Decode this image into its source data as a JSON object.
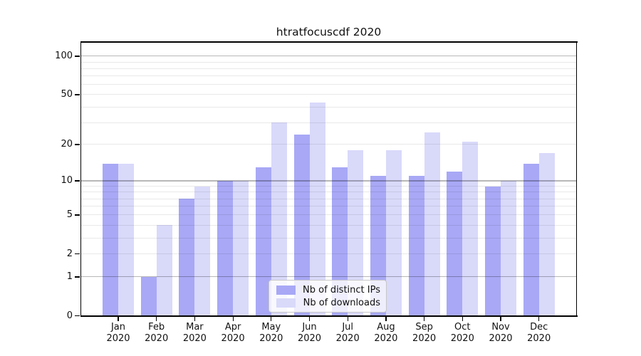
{
  "title": "htratfocuscdf 2020",
  "colors": {
    "ips_bar": "#a8a8f6",
    "downloads_bar": "#d9d9fa",
    "grid_major": "rgba(0,0,0,0.28)",
    "grid_minor": "rgba(0,0,0,0.085)",
    "axis": "#000000",
    "legend_border": "#c8c8c8"
  },
  "chart_data": {
    "type": "bar",
    "title": "htratfocuscdf 2020",
    "categories": [
      "Jan",
      "Feb",
      "Mar",
      "Apr",
      "May",
      "Jun",
      "Jul",
      "Aug",
      "Sep",
      "Oct",
      "Nov",
      "Dec"
    ],
    "year_label": "2020",
    "series": [
      {
        "name": "Nb of distinct IPs",
        "values": [
          14,
          1,
          7,
          10,
          13,
          24,
          13,
          11,
          11,
          12,
          9,
          14
        ]
      },
      {
        "name": "Nb of downloads",
        "values": [
          14,
          4,
          9,
          10,
          30,
          43,
          18,
          18,
          25,
          21,
          10,
          17
        ]
      }
    ],
    "xlabel": "",
    "ylabel": "",
    "yscale": "log10(1+x)",
    "ylim": [
      0,
      130
    ],
    "yticks": [
      0,
      1,
      2,
      5,
      10,
      20,
      50,
      100
    ],
    "major_gridlines": [
      1,
      10,
      100
    ],
    "minor_gridlines": [
      2,
      3,
      4,
      5,
      6,
      7,
      8,
      9,
      20,
      30,
      40,
      50,
      60,
      70,
      80,
      90
    ],
    "grid": true,
    "legend_position": "lower center"
  }
}
